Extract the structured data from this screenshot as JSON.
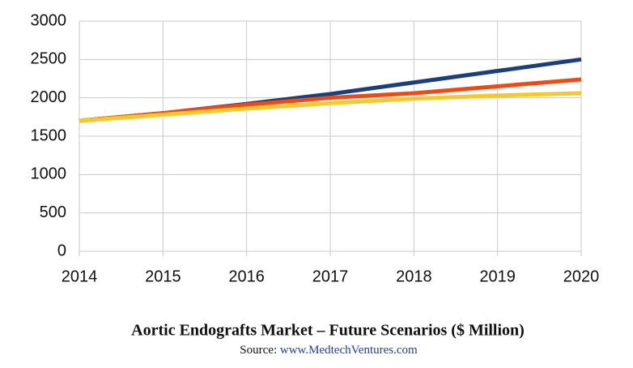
{
  "chart_data": {
    "type": "line",
    "title": "Aortic Endografts Market – Future Scenarios ($ Million)",
    "source_label": "Source:",
    "source_url": "www.MedtechVentures.com",
    "x": [
      2014,
      2015,
      2016,
      2017,
      2018,
      2019,
      2020
    ],
    "series": [
      {
        "color": "#1c3f7c",
        "values": [
          1700,
          1800,
          1920,
          2050,
          2200,
          2350,
          2500
        ]
      },
      {
        "color": "#f04a14",
        "values": [
          1700,
          1800,
          1910,
          2000,
          2060,
          2150,
          2240
        ]
      },
      {
        "color": "#f6c82a",
        "values": [
          1700,
          1780,
          1860,
          1930,
          1990,
          2030,
          2060
        ]
      }
    ],
    "xlim": [
      2014,
      2020
    ],
    "xticks": [
      2014,
      2015,
      2016,
      2017,
      2018,
      2019,
      2020
    ],
    "ylim": [
      0,
      3000
    ],
    "yticks": [
      0,
      500,
      1000,
      1500,
      2000,
      2500,
      3000
    ],
    "grid": true
  }
}
